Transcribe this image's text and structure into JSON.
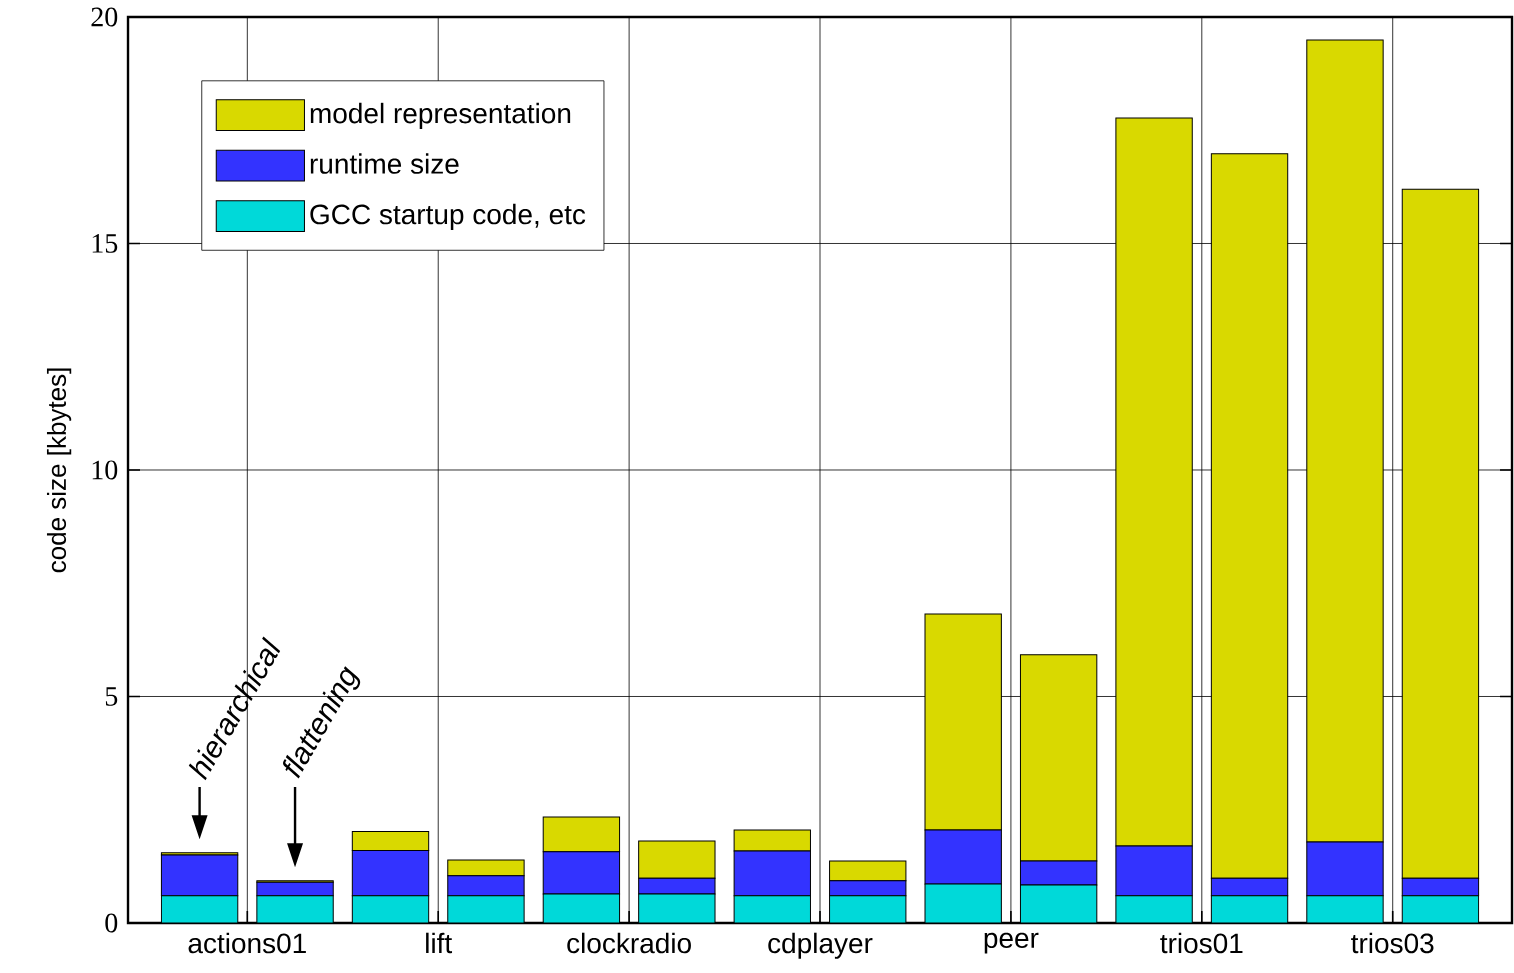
{
  "chart_data": {
    "type": "bar",
    "stacked": true,
    "ylabel": "code size [kbytes]",
    "categories": [
      "actions01",
      null,
      "lift",
      null,
      "clockradio",
      null,
      "cdplayer",
      null,
      "peer",
      null,
      "trios01",
      null,
      "trios03",
      null
    ],
    "series": [
      {
        "name": "GCC startup code, etc",
        "color": "#00d9d9",
        "values": [
          0.6,
          0.6,
          0.6,
          0.6,
          0.64,
          0.64,
          0.6,
          0.6,
          0.86,
          0.84,
          0.6,
          0.6,
          0.6,
          0.6
        ]
      },
      {
        "name": "runtime size",
        "color": "#3333ff",
        "values": [
          0.9,
          0.3,
          1.0,
          0.44,
          0.93,
          0.35,
          0.99,
          0.33,
          1.19,
          0.53,
          1.1,
          0.39,
          1.19,
          0.39
        ]
      },
      {
        "name": "model representation",
        "color": "#d9d900",
        "values": [
          0.05,
          0.03,
          0.42,
          0.35,
          0.77,
          0.82,
          0.46,
          0.44,
          4.77,
          4.55,
          16.07,
          15.99,
          17.7,
          15.21
        ]
      }
    ],
    "annotations": [
      "hierarchical",
      "flattening"
    ],
    "ylim": [
      0,
      20
    ],
    "yticks": [
      0,
      5,
      10,
      15,
      20
    ],
    "grid": true,
    "legend": "top left"
  }
}
